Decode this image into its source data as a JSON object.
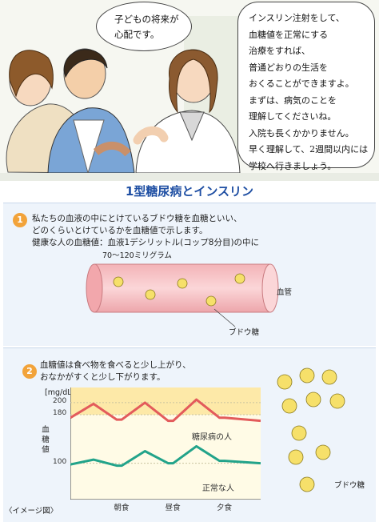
{
  "top": {
    "patient_speech": [
      "子どもの将来が",
      "心配です。"
    ],
    "doctor_speech": [
      "インスリン注射をして、",
      "血糖値を正常にする",
      "治療をすれば、",
      "普通どおりの生活を",
      "おくることができますよ。",
      "まずは、病気のことを",
      "理解してくださいね。",
      "入院も長くかかりません。",
      "早く理解して、2週間以内には",
      "学校へ行きましょう。"
    ]
  },
  "section": {
    "title": "1型糖尿病とインスリン"
  },
  "panel1": {
    "number": "1",
    "lines": [
      "私たちの血液の中にとけているブドウ糖を血糖といい、",
      "どのくらいとけているかを血糖値で示します。",
      "健康な人の血糖値：血液1デシリットル(コップ8分目)の中に"
    ],
    "range_label": "70〜120ミリグラム",
    "vessel_label": "血管",
    "glucose_label": "ブドウ糖"
  },
  "panel2": {
    "number": "2",
    "lines": [
      "血糖値は食べ物を食べると少し上がり、",
      "おなかがすくと少し下がります。"
    ],
    "glucose_label": "ブドウ糖",
    "image_note": "〈イメージ図〉"
  },
  "chart_data": {
    "type": "line",
    "yunit": "[mg/dL]",
    "ylabel": "血糖値",
    "yticks": [
      100,
      180,
      200
    ],
    "ylim": [
      40,
      225
    ],
    "highlight_band": [
      100,
      180
    ],
    "x": [
      0,
      0.45,
      0.9,
      1.0,
      1.45,
      1.9,
      2.0,
      2.45,
      2.9,
      3.0,
      3.7
    ],
    "xticks": [
      {
        "label": "朝食",
        "x": 1.0
      },
      {
        "label": "昼食",
        "x": 2.0
      },
      {
        "label": "夕食",
        "x": 3.0
      }
    ],
    "series": [
      {
        "name": "糖尿病の人",
        "color": "#e35b5b",
        "values": [
          175,
          198,
          172,
          172,
          200,
          170,
          170,
          205,
          175,
          175,
          170
        ]
      },
      {
        "name": "正常な人",
        "color": "#22a38a",
        "values": [
          98,
          106,
          96,
          96,
          120,
          100,
          100,
          128,
          104,
          104,
          100
        ]
      }
    ]
  }
}
